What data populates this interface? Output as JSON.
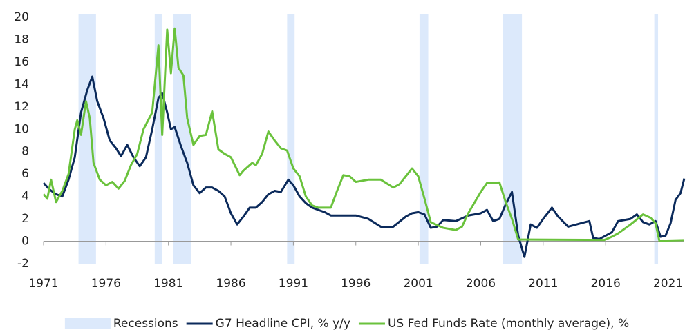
{
  "chart_data": {
    "type": "line",
    "recessions": {
      "name": "Recessions",
      "color": "#dce9fb",
      "periods": [
        [
          1973.8,
          1975.2
        ],
        [
          1979.9,
          1980.5
        ],
        [
          1981.4,
          1982.8
        ],
        [
          1990.5,
          1991.1
        ],
        [
          2001.1,
          2001.8
        ],
        [
          2007.8,
          2009.3
        ],
        [
          2019.9,
          2020.2
        ]
      ]
    },
    "series": [
      {
        "name": "G7 Headline CPI, % y/y",
        "color": "#0b2a5b",
        "x": [
          1971,
          1971.5,
          1972,
          1972.5,
          1973,
          1973.5,
          1974,
          1974.5,
          1974.9,
          1975.3,
          1975.8,
          1976.3,
          1976.8,
          1977.2,
          1977.7,
          1978.2,
          1978.7,
          1979.2,
          1979.7,
          1980.2,
          1980.5,
          1980.9,
          1981.2,
          1981.5,
          1982,
          1982.5,
          1983,
          1983.5,
          1984,
          1984.5,
          1985,
          1985.5,
          1986,
          1986.5,
          1987,
          1987.5,
          1988,
          1988.5,
          1989,
          1989.5,
          1990,
          1990.6,
          1991,
          1991.5,
          1992,
          1992.5,
          1993,
          1993.5,
          1994,
          1995,
          1996,
          1997,
          1998,
          1999,
          2000,
          2000.5,
          2001,
          2001.5,
          2002,
          2002.5,
          2003,
          2004,
          2005,
          2006,
          2006.5,
          2007,
          2007.5,
          2008,
          2008.5,
          2009,
          2009.5,
          2010,
          2010.5,
          2011,
          2011.7,
          2012.2,
          2013,
          2014,
          2014.7,
          2015,
          2015.5,
          2016,
          2016.5,
          2017,
          2018,
          2018.5,
          2019,
          2019.5,
          2020,
          2020.4,
          2020.8,
          2021.2,
          2021.6,
          2022,
          2022.3
        ],
        "values": [
          5.2,
          4.6,
          4.2,
          4.0,
          5.5,
          7.5,
          11.5,
          13.5,
          14.7,
          12.5,
          11.0,
          9.0,
          8.3,
          7.6,
          8.6,
          7.5,
          6.7,
          7.5,
          10.0,
          12.8,
          13.2,
          11.5,
          10.0,
          10.2,
          8.5,
          7.0,
          5.0,
          4.3,
          4.8,
          4.8,
          4.5,
          4.0,
          2.5,
          1.5,
          2.2,
          3.0,
          3.0,
          3.5,
          4.2,
          4.5,
          4.4,
          5.5,
          5.0,
          4.0,
          3.4,
          3.0,
          2.8,
          2.6,
          2.3,
          2.3,
          2.3,
          2.0,
          1.3,
          1.3,
          2.2,
          2.5,
          2.6,
          2.4,
          1.2,
          1.3,
          1.9,
          1.8,
          2.3,
          2.5,
          2.8,
          1.8,
          2.0,
          3.3,
          4.4,
          0.5,
          -1.4,
          1.5,
          1.2,
          2.0,
          3.0,
          2.2,
          1.3,
          1.6,
          1.8,
          0.3,
          0.2,
          0.5,
          0.8,
          1.8,
          2.0,
          2.4,
          1.7,
          1.5,
          1.8,
          0.4,
          0.5,
          1.6,
          3.7,
          4.3,
          5.6
        ]
      },
      {
        "name": "US Fed Funds Rate (monthly average), %",
        "color": "#6ac23c",
        "x": [
          1971,
          1971.3,
          1971.6,
          1972,
          1972.5,
          1973,
          1973.5,
          1973.7,
          1974,
          1974.4,
          1974.7,
          1975,
          1975.5,
          1976,
          1976.5,
          1977,
          1977.5,
          1978,
          1978.5,
          1979,
          1979.7,
          1980.2,
          1980.5,
          1980.9,
          1981.2,
          1981.5,
          1981.8,
          1982.2,
          1982.5,
          1983,
          1983.5,
          1984,
          1984.5,
          1985,
          1985.5,
          1986,
          1986.7,
          1987,
          1987.7,
          1988,
          1988.5,
          1989,
          1989.5,
          1990,
          1990.5,
          1991,
          1991.5,
          1992,
          1992.5,
          1993,
          1994,
          1994.5,
          1995,
          1995.5,
          1996,
          1997,
          1998,
          1999,
          1999.5,
          2000,
          2000.5,
          2001,
          2001.5,
          2002,
          2003,
          2004,
          2004.5,
          2005,
          2006,
          2006.5,
          2007.5,
          2008,
          2008.5,
          2009,
          2010,
          2015.9,
          2016.5,
          2017,
          2018,
          2019,
          2019.6,
          2020,
          2020.3,
          2022.3
        ],
        "values": [
          4.2,
          3.8,
          5.5,
          3.5,
          4.5,
          6.0,
          10.0,
          10.8,
          9.5,
          12.5,
          11.0,
          7.0,
          5.5,
          5.0,
          5.3,
          4.7,
          5.4,
          6.8,
          7.8,
          10.0,
          11.5,
          17.5,
          9.5,
          18.9,
          15.0,
          19.0,
          15.5,
          14.8,
          11.0,
          8.6,
          9.4,
          9.5,
          11.6,
          8.2,
          7.8,
          7.5,
          5.9,
          6.3,
          7.0,
          6.8,
          7.8,
          9.8,
          9.0,
          8.3,
          8.1,
          6.5,
          5.8,
          4.0,
          3.2,
          3.0,
          3.0,
          4.5,
          5.9,
          5.8,
          5.3,
          5.5,
          5.5,
          4.8,
          5.1,
          5.8,
          6.5,
          5.8,
          3.8,
          1.7,
          1.2,
          1.0,
          1.3,
          2.5,
          4.4,
          5.2,
          5.25,
          3.5,
          2.0,
          0.15,
          0.15,
          0.12,
          0.4,
          0.7,
          1.5,
          2.4,
          2.1,
          1.6,
          0.05,
          0.1
        ]
      }
    ],
    "xlim": [
      1971,
      2022.3
    ],
    "xticks": [
      1971,
      1976,
      1981,
      1986,
      1991,
      1996,
      2001,
      2006,
      2011,
      2016,
      2021
    ],
    "ylim": [
      -2,
      20
    ],
    "yticks": [
      -2,
      0,
      2,
      4,
      6,
      8,
      10,
      12,
      14,
      16,
      18,
      20
    ],
    "grid": false,
    "legend": "bottom"
  }
}
